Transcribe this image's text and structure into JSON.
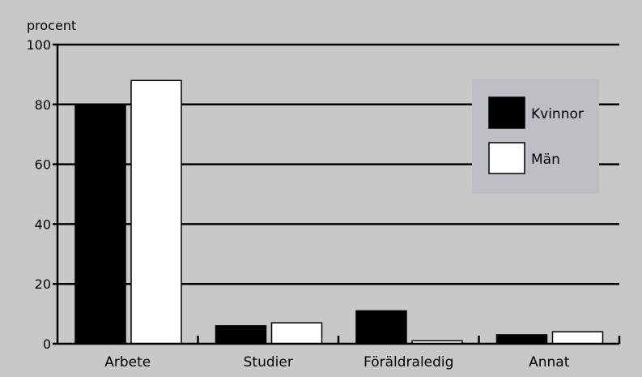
{
  "chart_data": {
    "type": "bar",
    "ylabel": "procent",
    "ylim": [
      0,
      100
    ],
    "yticks": [
      0,
      20,
      40,
      60,
      80,
      100
    ],
    "ytick_labels": [
      "0",
      "20",
      "40",
      "60",
      "80",
      "100"
    ],
    "grid": true,
    "legend_position": "top-right",
    "categories": [
      "Arbete",
      "Studier",
      "Föräldraledig",
      "Annat"
    ],
    "series": [
      {
        "name": "Kvinnor",
        "color": "#000000",
        "values": [
          80,
          6,
          11,
          3
        ]
      },
      {
        "name": "Män",
        "color": "#ffffff",
        "values": [
          88,
          7,
          1,
          4
        ]
      }
    ]
  },
  "colors": {
    "frame": "#c8c8c8",
    "plot_background": "#c8c8c8",
    "legend_background": "#bcc0c4",
    "gridline": "#000000"
  }
}
